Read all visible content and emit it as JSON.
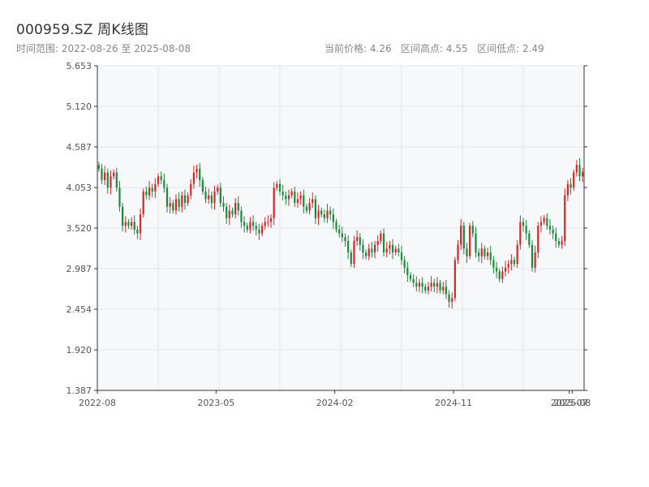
{
  "header": {
    "title": "000959.SZ 周K线图",
    "range_label": "时间范围:",
    "range_start": "2022-08-26",
    "range_sep": "至",
    "range_end": "2025-08-08",
    "current_label": "当前价格:",
    "current_value": "4.26",
    "high_label": "区间高点:",
    "high_value": "4.55",
    "low_label": "区间低点:",
    "low_value": "2.49"
  },
  "colors": {
    "up": "#d62728",
    "down": "#1a8a3c",
    "grid": "#e3e6ea",
    "plot_bg": "#f7f8fa",
    "axis": "#333333"
  },
  "chart_data": {
    "type": "candlestick",
    "title": "000959.SZ 周K线图",
    "ylim": [
      1.387,
      5.653
    ],
    "y_ticks": [
      "5.653",
      "5.120",
      "4.587",
      "4.053",
      "3.520",
      "2.987",
      "2.454",
      "1.920",
      "1.387"
    ],
    "x_ticks": [
      "2022-08",
      "2023-05",
      "2024-02",
      "2024-11",
      "2025-07",
      "2025-08"
    ],
    "x_tick_positions": [
      0,
      40,
      80,
      120,
      159,
      160
    ],
    "grid": true,
    "series": [
      {
        "values": [
          4.3,
          4.15,
          4.25,
          4.05,
          4.2,
          4.25,
          4.05,
          3.8,
          3.55,
          3.6,
          3.55,
          3.6,
          3.5,
          3.45,
          3.7,
          4.0,
          3.95,
          4.05,
          4.0,
          4.1,
          4.2,
          4.15,
          4.05,
          3.8,
          3.85,
          3.75,
          3.9,
          3.8,
          3.95,
          3.85,
          3.95,
          4.1,
          4.25,
          4.3,
          4.15,
          4.0,
          3.9,
          3.95,
          3.85,
          4.0,
          4.05,
          3.85,
          3.8,
          3.65,
          3.75,
          3.7,
          3.85,
          3.75,
          3.6,
          3.55,
          3.5,
          3.6,
          3.55,
          3.5,
          3.45,
          3.55,
          3.6,
          3.6,
          3.65,
          4.05,
          4.1,
          4.0,
          3.95,
          3.9,
          3.95,
          4.0,
          3.85,
          3.9,
          3.95,
          3.8,
          3.75,
          3.85,
          3.9,
          3.65,
          3.75,
          3.7,
          3.65,
          3.75,
          3.7,
          3.6,
          3.5,
          3.45,
          3.4,
          3.35,
          3.2,
          3.05,
          3.35,
          3.4,
          3.3,
          3.2,
          3.15,
          3.25,
          3.2,
          3.3,
          3.35,
          3.45,
          3.2,
          3.25,
          3.3,
          3.2,
          3.25,
          3.2,
          3.1,
          3.0,
          2.9,
          2.85,
          2.8,
          2.75,
          2.8,
          2.75,
          2.7,
          2.75,
          2.8,
          2.75,
          2.8,
          2.7,
          2.75,
          2.65,
          2.55,
          2.6,
          3.1,
          3.3,
          3.55,
          3.25,
          3.15,
          3.55,
          3.45,
          3.2,
          3.15,
          3.25,
          3.15,
          3.2,
          3.1,
          3.0,
          2.95,
          2.85,
          2.95,
          3.0,
          3.05,
          3.1,
          3.05,
          3.3,
          3.6,
          3.55,
          3.45,
          3.3,
          3.0,
          3.2,
          3.55,
          3.6,
          3.65,
          3.55,
          3.5,
          3.45,
          3.35,
          3.3,
          3.35,
          3.95,
          4.1,
          4.05,
          4.25,
          4.35,
          4.2,
          4.26
        ]
      }
    ]
  }
}
